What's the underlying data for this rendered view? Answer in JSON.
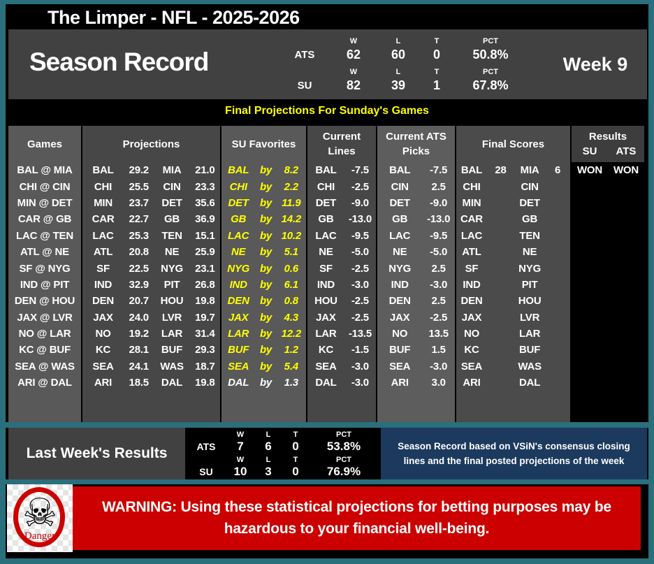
{
  "title": "The Limper - NFL - 2025-2026",
  "season_record": {
    "title": "Season Record",
    "week": "Week 9",
    "stat_headers": [
      "W",
      "L",
      "T",
      "PCT"
    ],
    "rows": [
      {
        "label": "ATS",
        "w": "62",
        "l": "60",
        "t": "0",
        "pct": "50.8%"
      },
      {
        "label": "SU",
        "w": "82",
        "l": "39",
        "t": "1",
        "pct": "67.8%"
      }
    ]
  },
  "banner": {
    "text": "Final Projections For Sunday's Games"
  },
  "table": {
    "headers": {
      "games": "Games",
      "projections": "Projections",
      "su_favorites": "SU Favorites",
      "current_lines": [
        "Current",
        "Lines"
      ],
      "current_ats": [
        "Current ATS",
        "Picks"
      ],
      "final_scores": "Final Scores",
      "results": "Results",
      "results_su": "SU",
      "results_ats": "ATS"
    },
    "by_label": "by",
    "fav_colors": {
      "default": "#ffff00",
      "alt": "#ffffff"
    },
    "rows": [
      {
        "game": "BAL @ MIA",
        "away": "BAL",
        "away_pts": "29.2",
        "home": "MIA",
        "home_pts": "21.0",
        "fav": "BAL",
        "fav_margin": "8.2",
        "fav_color": "#ffff00",
        "line_team": "BAL",
        "line_val": "-7.5",
        "pick_team": "BAL",
        "pick_val": "-7.5",
        "fs_away": "BAL",
        "fs_away_pts": "28",
        "fs_home": "MIA",
        "fs_home_pts": "6",
        "su_result": "WON",
        "ats_result": "WON"
      },
      {
        "game": "CHI @ CIN",
        "away": "CHI",
        "away_pts": "25.5",
        "home": "CIN",
        "home_pts": "23.3",
        "fav": "CHI",
        "fav_margin": "2.2",
        "fav_color": "#ffff00",
        "line_team": "CHI",
        "line_val": "-2.5",
        "pick_team": "CIN",
        "pick_val": "2.5",
        "fs_away": "CHI",
        "fs_away_pts": "",
        "fs_home": "CIN",
        "fs_home_pts": "",
        "su_result": "",
        "ats_result": ""
      },
      {
        "game": "MIN @ DET",
        "away": "MIN",
        "away_pts": "23.7",
        "home": "DET",
        "home_pts": "35.6",
        "fav": "DET",
        "fav_margin": "11.9",
        "fav_color": "#ffff00",
        "line_team": "DET",
        "line_val": "-9.0",
        "pick_team": "DET",
        "pick_val": "-9.0",
        "fs_away": "MIN",
        "fs_away_pts": "",
        "fs_home": "DET",
        "fs_home_pts": "",
        "su_result": "",
        "ats_result": ""
      },
      {
        "game": "CAR @ GB",
        "away": "CAR",
        "away_pts": "22.7",
        "home": "GB",
        "home_pts": "36.9",
        "fav": "GB",
        "fav_margin": "14.2",
        "fav_color": "#ffff00",
        "line_team": "GB",
        "line_val": "-13.0",
        "pick_team": "GB",
        "pick_val": "-13.0",
        "fs_away": "CAR",
        "fs_away_pts": "",
        "fs_home": "GB",
        "fs_home_pts": "",
        "su_result": "",
        "ats_result": ""
      },
      {
        "game": "LAC @ TEN",
        "away": "LAC",
        "away_pts": "25.3",
        "home": "TEN",
        "home_pts": "15.1",
        "fav": "LAC",
        "fav_margin": "10.2",
        "fav_color": "#ffff00",
        "line_team": "LAC",
        "line_val": "-9.5",
        "pick_team": "LAC",
        "pick_val": "-9.5",
        "fs_away": "LAC",
        "fs_away_pts": "",
        "fs_home": "TEN",
        "fs_home_pts": "",
        "su_result": "",
        "ats_result": ""
      },
      {
        "game": "ATL @ NE",
        "away": "ATL",
        "away_pts": "20.8",
        "home": "NE",
        "home_pts": "25.9",
        "fav": "NE",
        "fav_margin": "5.1",
        "fav_color": "#ffff00",
        "line_team": "NE",
        "line_val": "-5.0",
        "pick_team": "NE",
        "pick_val": "-5.0",
        "fs_away": "ATL",
        "fs_away_pts": "",
        "fs_home": "NE",
        "fs_home_pts": "",
        "su_result": "",
        "ats_result": ""
      },
      {
        "game": "SF @ NYG",
        "away": "SF",
        "away_pts": "22.5",
        "home": "NYG",
        "home_pts": "23.1",
        "fav": "NYG",
        "fav_margin": "0.6",
        "fav_color": "#ffff00",
        "line_team": "SF",
        "line_val": "-2.5",
        "pick_team": "NYG",
        "pick_val": "2.5",
        "fs_away": "SF",
        "fs_away_pts": "",
        "fs_home": "NYG",
        "fs_home_pts": "",
        "su_result": "",
        "ats_result": ""
      },
      {
        "game": "IND @ PIT",
        "away": "IND",
        "away_pts": "32.9",
        "home": "PIT",
        "home_pts": "26.8",
        "fav": "IND",
        "fav_margin": "6.1",
        "fav_color": "#ffff00",
        "line_team": "IND",
        "line_val": "-3.0",
        "pick_team": "IND",
        "pick_val": "-3.0",
        "fs_away": "IND",
        "fs_away_pts": "",
        "fs_home": "PIT",
        "fs_home_pts": "",
        "su_result": "",
        "ats_result": ""
      },
      {
        "game": "DEN @ HOU",
        "away": "DEN",
        "away_pts": "20.7",
        "home": "HOU",
        "home_pts": "19.8",
        "fav": "DEN",
        "fav_margin": "0.8",
        "fav_color": "#ffff00",
        "line_team": "HOU",
        "line_val": "-2.5",
        "pick_team": "DEN",
        "pick_val": "2.5",
        "fs_away": "DEN",
        "fs_away_pts": "",
        "fs_home": "HOU",
        "fs_home_pts": "",
        "su_result": "",
        "ats_result": ""
      },
      {
        "game": "JAX @ LVR",
        "away": "JAX",
        "away_pts": "24.0",
        "home": "LVR",
        "home_pts": "19.7",
        "fav": "JAX",
        "fav_margin": "4.3",
        "fav_color": "#ffff00",
        "line_team": "JAX",
        "line_val": "-2.5",
        "pick_team": "JAX",
        "pick_val": "-2.5",
        "fs_away": "JAX",
        "fs_away_pts": "",
        "fs_home": "LVR",
        "fs_home_pts": "",
        "su_result": "",
        "ats_result": ""
      },
      {
        "game": "NO @ LAR",
        "away": "NO",
        "away_pts": "19.2",
        "home": "LAR",
        "home_pts": "31.4",
        "fav": "LAR",
        "fav_margin": "12.2",
        "fav_color": "#ffff00",
        "line_team": "LAR",
        "line_val": "-13.5",
        "pick_team": "NO",
        "pick_val": "13.5",
        "fs_away": "NO",
        "fs_away_pts": "",
        "fs_home": "LAR",
        "fs_home_pts": "",
        "su_result": "",
        "ats_result": ""
      },
      {
        "game": "KC @ BUF",
        "away": "KC",
        "away_pts": "28.1",
        "home": "BUF",
        "home_pts": "29.3",
        "fav": "BUF",
        "fav_margin": "1.2",
        "fav_color": "#ffff00",
        "line_team": "KC",
        "line_val": "-1.5",
        "pick_team": "BUF",
        "pick_val": "1.5",
        "fs_away": "KC",
        "fs_away_pts": "",
        "fs_home": "BUF",
        "fs_home_pts": "",
        "su_result": "",
        "ats_result": ""
      },
      {
        "game": "SEA @ WAS",
        "away": "SEA",
        "away_pts": "24.1",
        "home": "WAS",
        "home_pts": "18.7",
        "fav": "SEA",
        "fav_margin": "5.4",
        "fav_color": "#ffff00",
        "line_team": "SEA",
        "line_val": "-3.0",
        "pick_team": "SEA",
        "pick_val": "-3.0",
        "fs_away": "SEA",
        "fs_away_pts": "",
        "fs_home": "WAS",
        "fs_home_pts": "",
        "su_result": "",
        "ats_result": ""
      },
      {
        "game": "ARI @ DAL",
        "away": "ARI",
        "away_pts": "18.5",
        "home": "DAL",
        "home_pts": "19.8",
        "fav": "DAL",
        "fav_margin": "1.3",
        "fav_color": "#ffffff",
        "line_team": "DAL",
        "line_val": "-3.0",
        "pick_team": "ARI",
        "pick_val": "3.0",
        "fs_away": "ARI",
        "fs_away_pts": "",
        "fs_home": "DAL",
        "fs_home_pts": "",
        "su_result": "",
        "ats_result": ""
      }
    ]
  },
  "last_week": {
    "title": "Last Week's Results",
    "stat_headers": [
      "W",
      "L",
      "T",
      "PCT"
    ],
    "rows": [
      {
        "label": "ATS",
        "w": "7",
        "l": "6",
        "t": "0",
        "pct": "53.8%"
      },
      {
        "label": "SU",
        "w": "10",
        "l": "3",
        "t": "0",
        "pct": "76.9%"
      }
    ]
  },
  "note": {
    "line1": "Season Record based on VSiN's consensus closing",
    "line2": "lines and the final posted projections of the week"
  },
  "warning": {
    "line1": "WARNING: Using these statistical projections for betting purposes may be",
    "line2": "hazardous to your financial well-being.",
    "danger_label": "Danger",
    "skull_glyph": "☠"
  }
}
